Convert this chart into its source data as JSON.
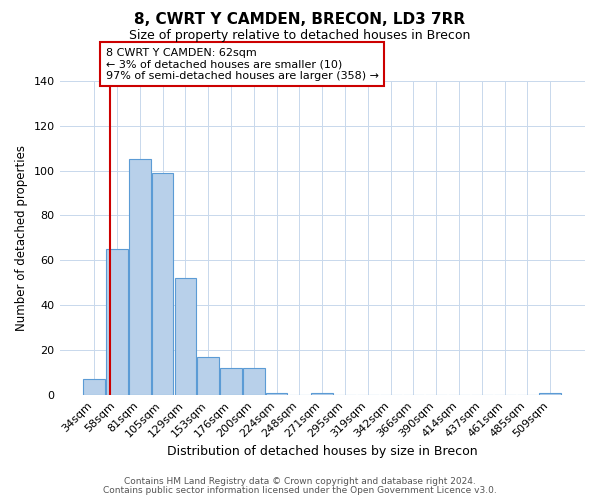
{
  "title": "8, CWRT Y CAMDEN, BRECON, LD3 7RR",
  "subtitle": "Size of property relative to detached houses in Brecon",
  "xlabel": "Distribution of detached houses by size in Brecon",
  "ylabel": "Number of detached properties",
  "bar_labels": [
    "34sqm",
    "58sqm",
    "81sqm",
    "105sqm",
    "129sqm",
    "153sqm",
    "176sqm",
    "200sqm",
    "224sqm",
    "248sqm",
    "271sqm",
    "295sqm",
    "319sqm",
    "342sqm",
    "366sqm",
    "390sqm",
    "414sqm",
    "437sqm",
    "461sqm",
    "485sqm",
    "509sqm"
  ],
  "bar_values": [
    7,
    65,
    105,
    99,
    52,
    17,
    12,
    12,
    1,
    0,
    1,
    0,
    0,
    0,
    0,
    0,
    0,
    0,
    0,
    0,
    1
  ],
  "bar_color": "#b8d0ea",
  "bar_edge_color": "#5b9bd5",
  "ylim": [
    0,
    140
  ],
  "yticks": [
    0,
    20,
    40,
    60,
    80,
    100,
    120,
    140
  ],
  "annotation_line1": "8 CWRT Y CAMDEN: 62sqm",
  "annotation_line2": "← 3% of detached houses are smaller (10)",
  "annotation_line3": "97% of semi-detached houses are larger (358) →",
  "annotation_box_color": "#ffffff",
  "annotation_box_edge": "#cc0000",
  "vline_color": "#cc0000",
  "footer1": "Contains HM Land Registry data © Crown copyright and database right 2024.",
  "footer2": "Contains public sector information licensed under the Open Government Licence v3.0.",
  "background_color": "#ffffff",
  "grid_color": "#c8d8ec"
}
